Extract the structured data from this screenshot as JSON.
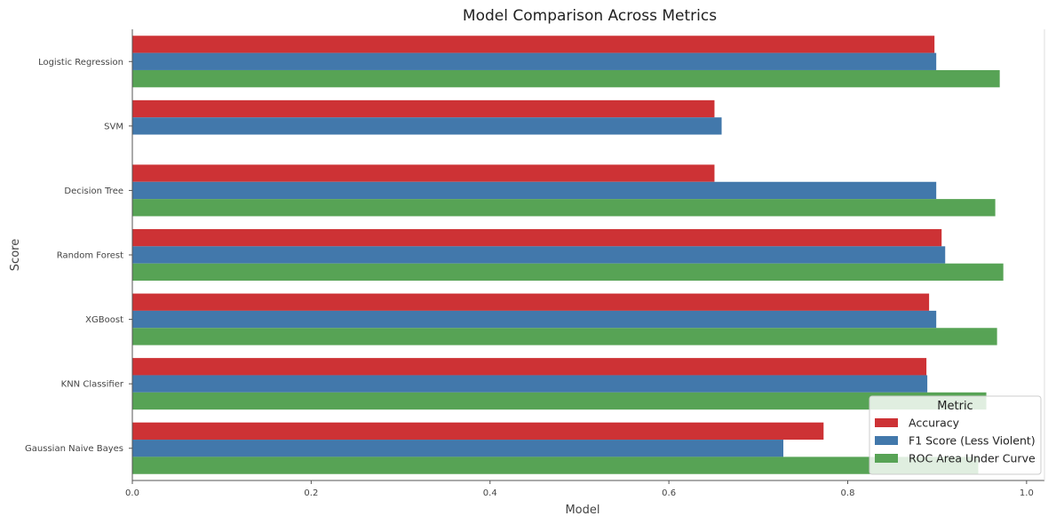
{
  "chart_data": {
    "type": "bar",
    "orientation": "horizontal",
    "title": "Model Comparison Across Metrics",
    "xlabel": "Model",
    "ylabel": "Score",
    "xlim": [
      0,
      1.02
    ],
    "x_ticks": [
      "0.0",
      "0.2",
      "0.4",
      "0.6",
      "0.8",
      "1.0"
    ],
    "x_tick_values": [
      0,
      0.2,
      0.4,
      0.6,
      0.8,
      1.0
    ],
    "categories": [
      "Logistic Regression",
      "SVM",
      "Decision Tree",
      "Random Forest",
      "XGBoost",
      "KNN Classifier",
      "Gaussian Naive Bayes"
    ],
    "series": [
      {
        "name": "Accuracy",
        "color": "#cd3235",
        "values": [
          0.897,
          0.651,
          0.651,
          0.905,
          0.891,
          0.888,
          0.773
        ]
      },
      {
        "name": "F1 Score (Less Violent)",
        "color": "#4278ab",
        "values": [
          0.899,
          0.659,
          0.899,
          0.909,
          0.899,
          0.889,
          0.728
        ]
      },
      {
        "name": "ROC Area Under Curve",
        "color": "#57a355",
        "values": [
          0.97,
          null,
          0.965,
          0.974,
          0.967,
          0.955,
          0.946
        ]
      }
    ],
    "legend": {
      "title": "Metric",
      "placement": "lower-right"
    },
    "grid": false
  }
}
